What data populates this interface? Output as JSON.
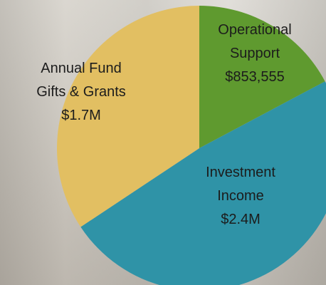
{
  "chart_data": {
    "type": "pie",
    "categories": [
      "Operational Support",
      "Investment Income",
      "Annual Fund Gifts & Grants"
    ],
    "values": [
      853555,
      2400000,
      1700000
    ],
    "value_labels": [
      "$853,555",
      "$2.4M",
      "$1.7M"
    ],
    "colors": [
      "#5f9a2f",
      "#2f93a7",
      "#e2bf62"
    ],
    "start_angle": 0,
    "direction": "clockwise"
  }
}
